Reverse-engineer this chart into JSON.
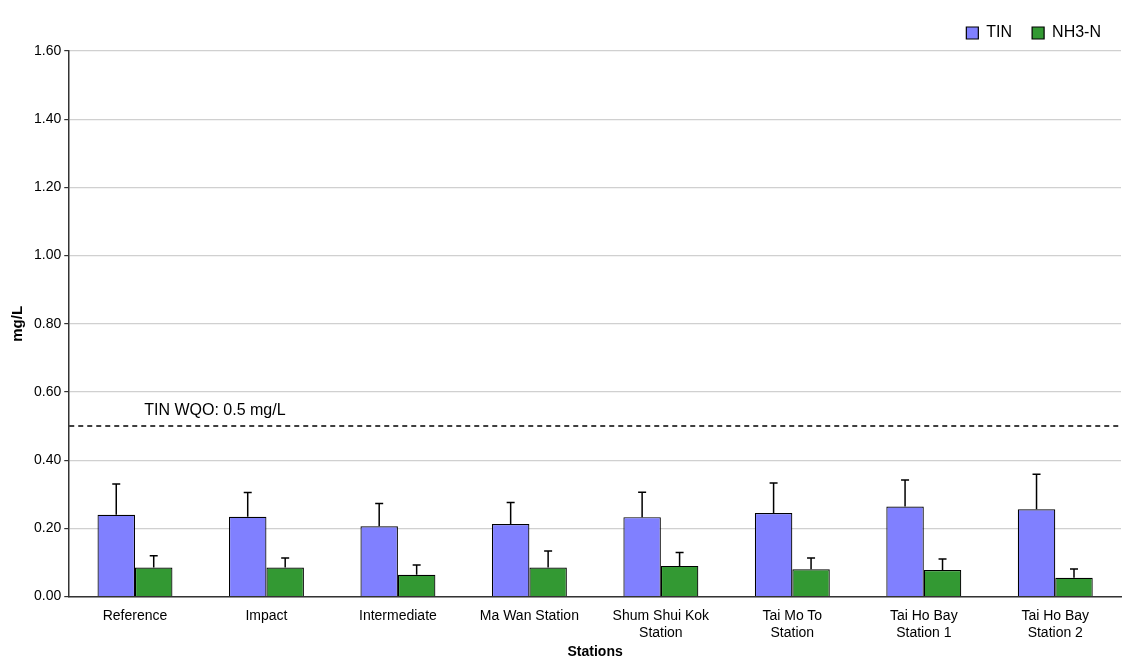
{
  "chart_data": {
    "type": "bar",
    "xlabel": "Stations",
    "ylabel": "mg/L",
    "categories": [
      "Reference",
      "Impact",
      "Intermediate",
      "Ma Wan Station",
      "Shum Shui Kok Station",
      "Tai Mo To Station",
      "Tai Ho Bay Station 1",
      "Tai Ho Bay Station 2"
    ],
    "series": [
      {
        "name": "TIN",
        "color": "#8080ff",
        "values": [
          0.24,
          0.234,
          0.206,
          0.213,
          0.233,
          0.245,
          0.264,
          0.256
        ],
        "errors": [
          [
            0.24,
            0.33
          ],
          [
            0.234,
            0.305
          ],
          [
            0.206,
            0.273
          ],
          [
            0.213,
            0.276
          ],
          [
            0.233,
            0.306
          ],
          [
            0.245,
            0.333
          ],
          [
            0.264,
            0.342
          ],
          [
            0.256,
            0.359
          ]
        ]
      },
      {
        "name": "NH3-N",
        "color": "#339933",
        "values": [
          0.085,
          0.085,
          0.064,
          0.085,
          0.09,
          0.08,
          0.078,
          0.055
        ],
        "errors": [
          [
            0.085,
            0.12
          ],
          [
            0.085,
            0.113
          ],
          [
            0.064,
            0.093
          ],
          [
            0.085,
            0.134
          ],
          [
            0.09,
            0.129
          ],
          [
            0.08,
            0.113
          ],
          [
            0.078,
            0.11
          ],
          [
            0.055,
            0.081
          ]
        ]
      }
    ],
    "ylim": [
      0,
      1.6
    ],
    "yticks": [
      {
        "value": 0,
        "label": "0.00"
      },
      {
        "value": 0.2,
        "label": "0.20"
      },
      {
        "value": 0.4,
        "label": "0.40"
      },
      {
        "value": 0.6,
        "label": "0.60"
      },
      {
        "value": 0.8,
        "label": "0.80"
      },
      {
        "value": 1,
        "label": "1.00"
      },
      {
        "value": 1.2,
        "label": "1.20"
      },
      {
        "value": 1.4,
        "label": "1.40"
      },
      {
        "value": 1.6,
        "label": "1.60"
      }
    ],
    "ref_lines": [
      {
        "axis": "y",
        "value": 0.5,
        "label": "TIN WQO: 0.5 mg/L",
        "color": "#000000",
        "line_style": "dashed"
      }
    ],
    "grid": "y",
    "legend": "top right"
  }
}
